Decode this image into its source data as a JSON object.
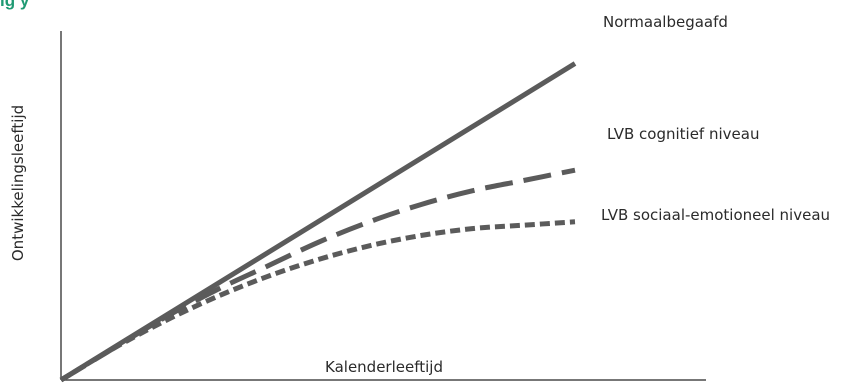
{
  "chart_data": {
    "type": "line",
    "title": "",
    "xlabel": "Kalenderleeftijd",
    "ylabel": "Ontwikkelingsleeftijd",
    "xlim": [
      0,
      10
    ],
    "ylim": [
      0,
      10
    ],
    "grid": false,
    "legend": "labels at line ends, right",
    "series": [
      {
        "name": "Normaalbegaafd",
        "line_style": "solid",
        "color": "#5b5b5b",
        "x": [
          0,
          10
        ],
        "y": [
          0,
          9.2
        ]
      },
      {
        "name": "LVB cognitief niveau",
        "line_style": "long-dash",
        "color": "#5b5b5b",
        "x": [
          0,
          1,
          2,
          3,
          4,
          5,
          6,
          7,
          8,
          9,
          10
        ],
        "y": [
          0,
          0.9,
          1.8,
          2.6,
          3.3,
          4.0,
          4.6,
          5.1,
          5.5,
          5.8,
          6.1
        ]
      },
      {
        "name": "LVB sociaal-emotioneel niveau",
        "line_style": "short-dash",
        "color": "#5b5b5b",
        "x": [
          0,
          1,
          2,
          3,
          4,
          5,
          6,
          7,
          8,
          9,
          10
        ],
        "y": [
          0,
          0.9,
          1.7,
          2.4,
          3.0,
          3.5,
          3.9,
          4.2,
          4.4,
          4.5,
          4.6
        ]
      }
    ]
  },
  "header_text": "ig                                                         y"
}
